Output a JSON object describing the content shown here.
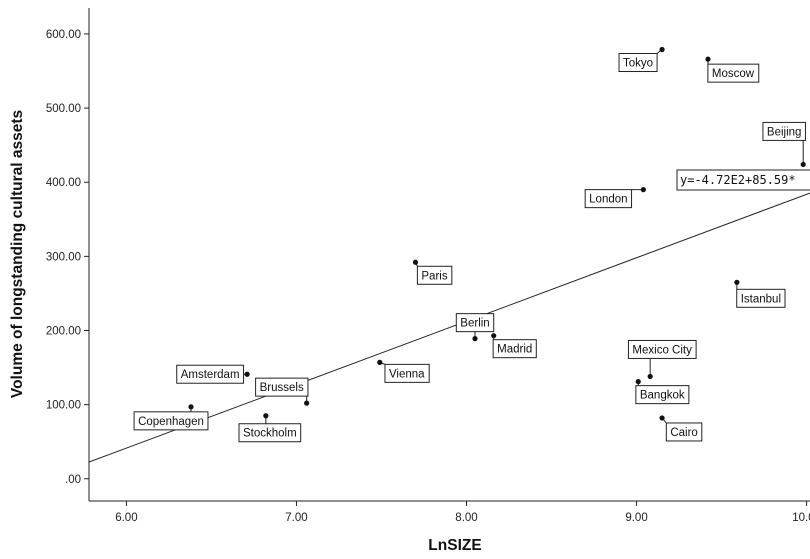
{
  "chart_data": {
    "type": "scatter",
    "title": "",
    "xlabel": "LnSIZE",
    "ylabel": "Volume of longstanding cultural assets",
    "xlim": [
      5.78,
      10.02
    ],
    "ylim": [
      -30,
      635
    ],
    "x_ticks": [
      "6.00",
      "7.00",
      "8.00",
      "9.00",
      "10.00"
    ],
    "y_ticks": [
      ".00",
      "100.00",
      "200.00",
      "300.00",
      "400.00",
      "500.00",
      "600.00"
    ],
    "grid": false,
    "points": [
      {
        "label": "Copenhagen",
        "x": 6.38,
        "y": 97
      },
      {
        "label": "Amsterdam",
        "x": 6.71,
        "y": 141
      },
      {
        "label": "Stockholm",
        "x": 6.82,
        "y": 85
      },
      {
        "label": "Brussels",
        "x": 7.06,
        "y": 102
      },
      {
        "label": "Vienna",
        "x": 7.49,
        "y": 157
      },
      {
        "label": "Paris",
        "x": 7.7,
        "y": 292
      },
      {
        "label": "Berlin",
        "x": 8.05,
        "y": 189
      },
      {
        "label": "Madrid",
        "x": 8.16,
        "y": 193
      },
      {
        "label": "London",
        "x": 9.04,
        "y": 390
      },
      {
        "label": "Tokyo",
        "x": 9.15,
        "y": 579
      },
      {
        "label": "Moscow",
        "x": 9.42,
        "y": 566
      },
      {
        "label": "Beijing",
        "x": 9.98,
        "y": 424
      },
      {
        "label": "Istanbul",
        "x": 9.59,
        "y": 265
      },
      {
        "label": "Mexico City",
        "x": 9.08,
        "y": 138
      },
      {
        "label": "Bangkok",
        "x": 9.01,
        "y": 131
      },
      {
        "label": "Cairo",
        "x": 9.15,
        "y": 82
      }
    ],
    "fit_line": {
      "label": "y=-4.72E2+85.59*",
      "intercept": -472.2,
      "slope": 85.59
    }
  }
}
